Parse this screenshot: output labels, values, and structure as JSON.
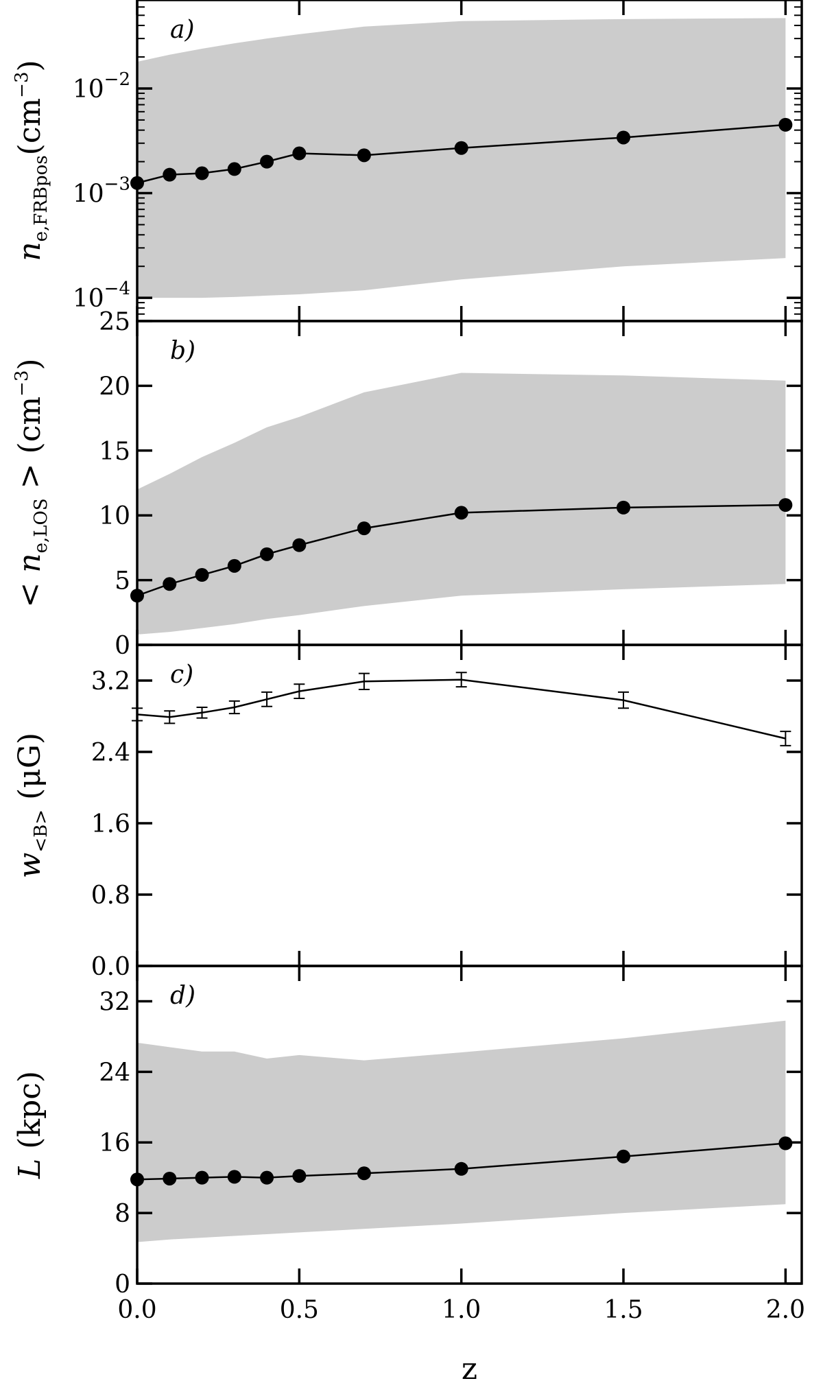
{
  "chart_data": [
    {
      "type": "line",
      "panel_label": "a)",
      "ylabel_main": "n",
      "ylabel_sub": "e,FRBpos",
      "ylabel_unit": "(cm",
      "ylabel_exp": "−3",
      "ylabel_close": ")",
      "yscale": "log",
      "ylim": [
        6e-05,
        0.07
      ],
      "yticks": [
        {
          "value": 0.0001,
          "base": "10",
          "exp": "−4"
        },
        {
          "value": 0.001,
          "base": "10",
          "exp": "−3"
        },
        {
          "value": 0.01,
          "base": "10",
          "exp": "−2"
        }
      ],
      "x": [
        0.0,
        0.1,
        0.2,
        0.3,
        0.4,
        0.5,
        0.7,
        1.0,
        1.5,
        2.0
      ],
      "series": [
        {
          "values": [
            0.00125,
            0.0015,
            0.00155,
            0.0017,
            0.002,
            0.0024,
            0.0023,
            0.0027,
            0.0034,
            0.0045
          ]
        }
      ],
      "band": {
        "x": [
          0.0,
          0.1,
          0.2,
          0.3,
          0.4,
          0.5,
          0.7,
          1.0,
          1.5,
          2.0
        ],
        "upper": [
          0.018,
          0.021,
          0.024,
          0.027,
          0.03,
          0.033,
          0.039,
          0.044,
          0.046,
          0.047
        ],
        "lower": [
          0.0001,
          0.0001,
          0.0001,
          0.000102,
          0.000105,
          0.000108,
          0.000118,
          0.00015,
          0.0002,
          0.00024
        ]
      }
    },
    {
      "type": "line",
      "panel_label": "b)",
      "ylabel_main": "< n",
      "ylabel_sub": "e,LOS",
      "ylabel_unit": " > (cm",
      "ylabel_exp": "−3",
      "ylabel_close": ")",
      "ylim": [
        0,
        25
      ],
      "yticks": [
        {
          "value": 0,
          "label": "0"
        },
        {
          "value": 5,
          "label": "5"
        },
        {
          "value": 10,
          "label": "10"
        },
        {
          "value": 15,
          "label": "15"
        },
        {
          "value": 20,
          "label": "20"
        },
        {
          "value": 25,
          "label": "25"
        }
      ],
      "x": [
        0.0,
        0.1,
        0.2,
        0.3,
        0.4,
        0.5,
        0.7,
        1.0,
        1.5,
        2.0
      ],
      "series": [
        {
          "values": [
            3.8,
            4.7,
            5.4,
            6.1,
            7.0,
            7.7,
            9.0,
            10.2,
            10.6,
            10.8
          ]
        }
      ],
      "band": {
        "x": [
          0.0,
          0.1,
          0.2,
          0.3,
          0.4,
          0.5,
          0.7,
          1.0,
          1.5,
          2.0
        ],
        "upper": [
          12.0,
          13.2,
          14.5,
          15.6,
          16.8,
          17.6,
          19.5,
          21.0,
          20.8,
          20.4
        ],
        "lower": [
          0.8,
          1.0,
          1.3,
          1.6,
          2.0,
          2.3,
          3.0,
          3.8,
          4.3,
          4.7
        ]
      }
    },
    {
      "type": "line",
      "panel_label": "c)",
      "ylabel_main": "w",
      "ylabel_sub": "<B>",
      "ylabel_unit": " (μG)",
      "ylabel_exp": "",
      "ylabel_close": "",
      "ylim": [
        0,
        3.6
      ],
      "yticks": [
        {
          "value": 0.0,
          "label": "0.0"
        },
        {
          "value": 0.8,
          "label": "0.8"
        },
        {
          "value": 1.6,
          "label": "1.6"
        },
        {
          "value": 2.4,
          "label": "2.4"
        },
        {
          "value": 3.2,
          "label": "3.2"
        }
      ],
      "x": [
        0.0,
        0.1,
        0.2,
        0.3,
        0.4,
        0.5,
        0.7,
        1.0,
        1.5,
        2.0
      ],
      "series": [
        {
          "values": [
            2.82,
            2.79,
            2.84,
            2.9,
            2.99,
            3.08,
            3.19,
            3.21,
            2.98,
            2.55
          ],
          "errors": [
            0.07,
            0.07,
            0.06,
            0.07,
            0.08,
            0.08,
            0.09,
            0.08,
            0.09,
            0.08
          ]
        }
      ]
    },
    {
      "type": "line",
      "panel_label": "d)",
      "ylabel_main": "L",
      "ylabel_sub": "",
      "ylabel_unit": " (kpc)",
      "ylabel_exp": "",
      "ylabel_close": "",
      "ylim": [
        0,
        36
      ],
      "yticks": [
        {
          "value": 0,
          "label": "0"
        },
        {
          "value": 8,
          "label": "8"
        },
        {
          "value": 16,
          "label": "16"
        },
        {
          "value": 24,
          "label": "24"
        },
        {
          "value": 32,
          "label": "32"
        }
      ],
      "xticks": [
        {
          "value": 0.0,
          "label": "0.0"
        },
        {
          "value": 0.5,
          "label": "0.5"
        },
        {
          "value": 1.0,
          "label": "1.0"
        },
        {
          "value": 1.5,
          "label": "1.5"
        },
        {
          "value": 2.0,
          "label": "2.0"
        }
      ],
      "xlabel": "z",
      "x": [
        0.0,
        0.1,
        0.2,
        0.3,
        0.4,
        0.5,
        0.7,
        1.0,
        1.5,
        2.0
      ],
      "series": [
        {
          "values": [
            11.8,
            11.9,
            12.0,
            12.1,
            12.0,
            12.2,
            12.5,
            13.0,
            14.4,
            15.9
          ]
        }
      ],
      "band": {
        "x": [
          0.0,
          0.1,
          0.2,
          0.3,
          0.4,
          0.5,
          0.7,
          1.0,
          1.5,
          2.0
        ],
        "upper": [
          27.3,
          26.8,
          26.3,
          26.3,
          25.5,
          25.9,
          25.3,
          26.2,
          27.8,
          29.8
        ],
        "lower": [
          4.7,
          5.0,
          5.2,
          5.4,
          5.6,
          5.8,
          6.2,
          6.8,
          8.0,
          9.0
        ]
      }
    }
  ],
  "xlim": [
    0.0,
    2.05
  ],
  "colors": {
    "band": "#cccccc",
    "line": "#000000"
  }
}
